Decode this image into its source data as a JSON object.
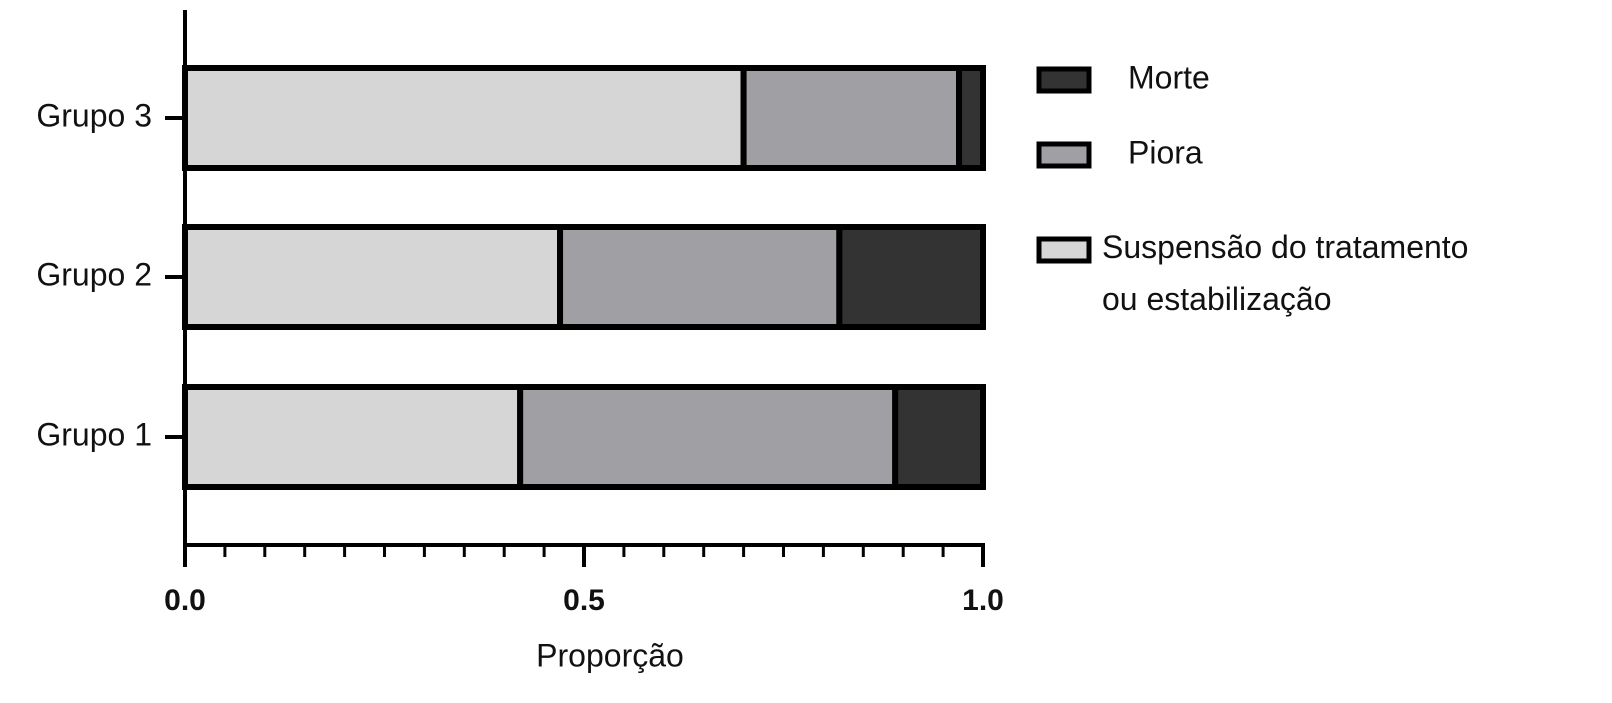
{
  "chart_data": {
    "type": "stacked-bar-horizontal",
    "x_label": "Proporção",
    "categories": [
      "Grupo 1",
      "Grupo 2",
      "Grupo 3"
    ],
    "series": [
      {
        "name": "Suspensão do tratamento\nou estabilização",
        "color": "#d6d6d6",
        "values": [
          0.42,
          0.47,
          0.7
        ]
      },
      {
        "name": "Piora",
        "color": "#a0a0a4",
        "values": [
          0.47,
          0.35,
          0.27
        ]
      },
      {
        "name": "Morte",
        "color": "#333333",
        "values": [
          0.11,
          0.18,
          0.03
        ]
      }
    ],
    "xlim": [
      0,
      1
    ],
    "xticks": [
      {
        "value": 0,
        "label": "0.0"
      },
      {
        "value": 0.5,
        "label": "0.5"
      },
      {
        "value": 1,
        "label": "1.0"
      }
    ],
    "xminorticks": [
      0.05,
      0.1,
      0.15,
      0.2,
      0.25,
      0.3,
      0.35,
      0.4,
      0.45,
      0.55,
      0.6,
      0.65,
      0.7,
      0.75,
      0.8,
      0.85,
      0.9,
      0.95
    ],
    "legend": "right"
  }
}
